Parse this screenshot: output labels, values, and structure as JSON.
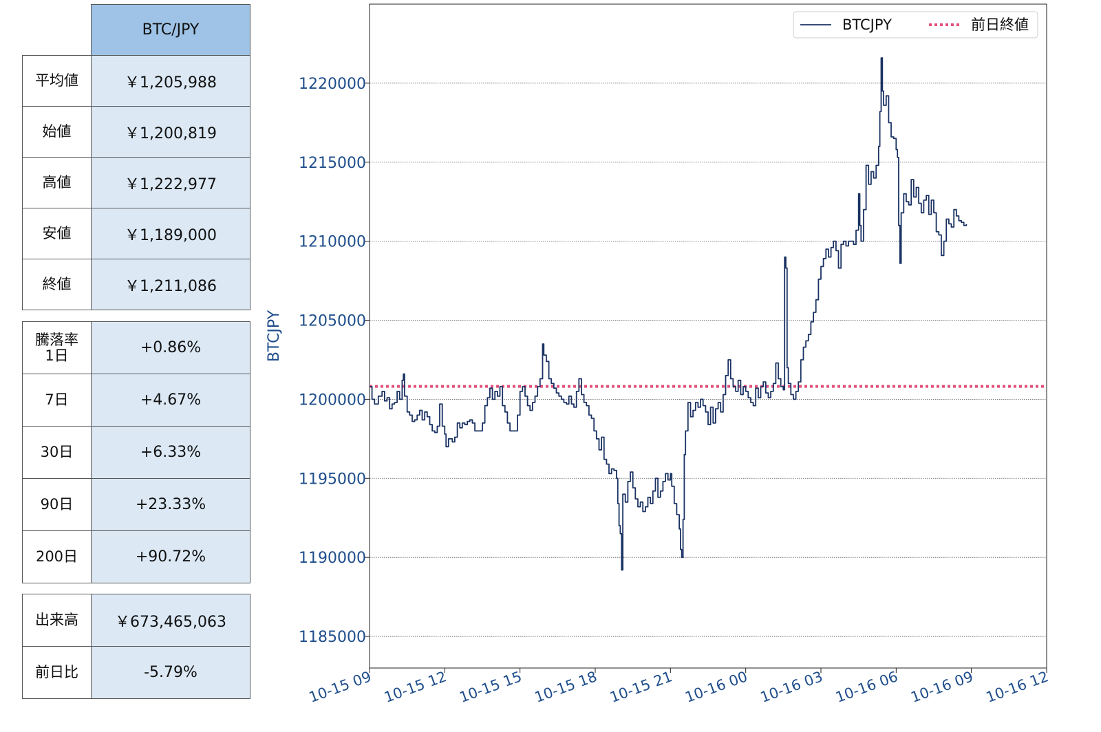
{
  "summary": {
    "header": "BTC/JPY",
    "rows": [
      {
        "label": "平均値",
        "value": "￥1,205,988"
      },
      {
        "label": "始値",
        "value": "￥1,200,819"
      },
      {
        "label": "高値",
        "value": "￥1,222,977"
      },
      {
        "label": "安値",
        "value": "￥1,189,000"
      },
      {
        "label": "終値",
        "value": "￥1,211,086"
      }
    ]
  },
  "changes": {
    "rows": [
      {
        "label": "騰落率\n1日",
        "value": "+0.86%"
      },
      {
        "label": "7日",
        "value": "+4.67%"
      },
      {
        "label": "30日",
        "value": "+6.33%"
      },
      {
        "label": "90日",
        "value": "+23.33%"
      },
      {
        "label": "200日",
        "value": "+90.72%"
      }
    ]
  },
  "volume": {
    "rows": [
      {
        "label": "出来高",
        "value": "￥673,465,063"
      },
      {
        "label": "前日比",
        "value": "-5.79%"
      }
    ]
  },
  "chart_data": {
    "type": "line",
    "ylabel": "BTCJPY",
    "xlabel": "",
    "ylim": [
      1183000,
      1225000
    ],
    "yticks": [
      1185000,
      1190000,
      1195000,
      1200000,
      1205000,
      1210000,
      1215000,
      1220000
    ],
    "xticks": [
      "10-15 09",
      "10-15 12",
      "10-15 15",
      "10-15 18",
      "10-15 21",
      "10-16 00",
      "10-16 03",
      "10-16 06",
      "10-16 09",
      "10-16 12"
    ],
    "x_unit": "hours since 10-15 09:00",
    "xlim_hours": [
      0,
      27
    ],
    "grid": "horizontal dotted",
    "legend": {
      "position": "top-right",
      "entries": [
        "BTCJPY",
        "前日終値"
      ]
    },
    "colors": {
      "line": "#1a3263",
      "ref": "#e0507a",
      "tick_text": "#1f4e8c"
    },
    "reference_line": {
      "name": "前日終値",
      "value": 1200819
    },
    "series": [
      {
        "name": "BTCJPY",
        "points": [
          [
            0.0,
            1200800
          ],
          [
            0.1,
            1200000
          ],
          [
            0.2,
            1199700
          ],
          [
            0.35,
            1200200
          ],
          [
            0.5,
            1200500
          ],
          [
            0.6,
            1199900
          ],
          [
            0.7,
            1200100
          ],
          [
            0.8,
            1199400
          ],
          [
            0.9,
            1199700
          ],
          [
            1.0,
            1199800
          ],
          [
            1.1,
            1200500
          ],
          [
            1.2,
            1200000
          ],
          [
            1.3,
            1201200
          ],
          [
            1.35,
            1201600
          ],
          [
            1.4,
            1200200
          ],
          [
            1.5,
            1199200
          ],
          [
            1.6,
            1199000
          ],
          [
            1.7,
            1198600
          ],
          [
            1.8,
            1198700
          ],
          [
            1.9,
            1199000
          ],
          [
            2.0,
            1199300
          ],
          [
            2.1,
            1198700
          ],
          [
            2.2,
            1199200
          ],
          [
            2.3,
            1198900
          ],
          [
            2.4,
            1198400
          ],
          [
            2.5,
            1198000
          ],
          [
            2.6,
            1197900
          ],
          [
            2.7,
            1198300
          ],
          [
            2.8,
            1199700
          ],
          [
            2.9,
            1198300
          ],
          [
            3.0,
            1197800
          ],
          [
            3.05,
            1197000
          ],
          [
            3.15,
            1197500
          ],
          [
            3.3,
            1197300
          ],
          [
            3.4,
            1197600
          ],
          [
            3.5,
            1198500
          ],
          [
            3.6,
            1198200
          ],
          [
            3.7,
            1198500
          ],
          [
            3.8,
            1198400
          ],
          [
            3.9,
            1198600
          ],
          [
            4.0,
            1198700
          ],
          [
            4.1,
            1198500
          ],
          [
            4.2,
            1198000
          ],
          [
            4.4,
            1198000
          ],
          [
            4.5,
            1198500
          ],
          [
            4.6,
            1199600
          ],
          [
            4.7,
            1200100
          ],
          [
            4.8,
            1200700
          ],
          [
            4.9,
            1200000
          ],
          [
            5.0,
            1200500
          ],
          [
            5.1,
            1200200
          ],
          [
            5.2,
            1200800
          ],
          [
            5.3,
            1199600
          ],
          [
            5.4,
            1199200
          ],
          [
            5.5,
            1198500
          ],
          [
            5.6,
            1198000
          ],
          [
            5.8,
            1198000
          ],
          [
            5.9,
            1199000
          ],
          [
            6.0,
            1200500
          ],
          [
            6.1,
            1200800
          ],
          [
            6.2,
            1200200
          ],
          [
            6.3,
            1199600
          ],
          [
            6.4,
            1199300
          ],
          [
            6.5,
            1199800
          ],
          [
            6.6,
            1200200
          ],
          [
            6.7,
            1200800
          ],
          [
            6.8,
            1201300
          ],
          [
            6.9,
            1203500
          ],
          [
            6.95,
            1202800
          ],
          [
            7.05,
            1202400
          ],
          [
            7.15,
            1201300
          ],
          [
            7.25,
            1201000
          ],
          [
            7.35,
            1200700
          ],
          [
            7.45,
            1200400
          ],
          [
            7.55,
            1200200
          ],
          [
            7.65,
            1200000
          ],
          [
            7.75,
            1199800
          ],
          [
            7.85,
            1199700
          ],
          [
            7.95,
            1200200
          ],
          [
            8.05,
            1199700
          ],
          [
            8.15,
            1199500
          ],
          [
            8.25,
            1200500
          ],
          [
            8.35,
            1201300
          ],
          [
            8.45,
            1200300
          ],
          [
            8.55,
            1199800
          ],
          [
            8.65,
            1199600
          ],
          [
            8.75,
            1199000
          ],
          [
            8.85,
            1198800
          ],
          [
            8.95,
            1198000
          ],
          [
            9.05,
            1197500
          ],
          [
            9.15,
            1196800
          ],
          [
            9.25,
            1197600
          ],
          [
            9.35,
            1196200
          ],
          [
            9.45,
            1195900
          ],
          [
            9.55,
            1195300
          ],
          [
            9.65,
            1195600
          ],
          [
            9.75,
            1195500
          ],
          [
            9.85,
            1195000
          ],
          [
            9.9,
            1193400
          ],
          [
            9.95,
            1192000
          ],
          [
            10.0,
            1191500
          ],
          [
            10.05,
            1189200
          ],
          [
            10.1,
            1194000
          ],
          [
            10.2,
            1193500
          ],
          [
            10.3,
            1194800
          ],
          [
            10.4,
            1195400
          ],
          [
            10.5,
            1194400
          ],
          [
            10.6,
            1193700
          ],
          [
            10.7,
            1193200
          ],
          [
            10.8,
            1193500
          ],
          [
            10.9,
            1192900
          ],
          [
            11.0,
            1193200
          ],
          [
            11.1,
            1193800
          ],
          [
            11.2,
            1193400
          ],
          [
            11.3,
            1194200
          ],
          [
            11.4,
            1195000
          ],
          [
            11.5,
            1193800
          ],
          [
            11.6,
            1194200
          ],
          [
            11.7,
            1194800
          ],
          [
            11.8,
            1195300
          ],
          [
            11.9,
            1194900
          ],
          [
            12.0,
            1195300
          ],
          [
            12.05,
            1194500
          ],
          [
            12.15,
            1193400
          ],
          [
            12.25,
            1192700
          ],
          [
            12.35,
            1191800
          ],
          [
            12.4,
            1190500
          ],
          [
            12.45,
            1190000
          ],
          [
            12.5,
            1192400
          ],
          [
            12.55,
            1196500
          ],
          [
            12.6,
            1198000
          ],
          [
            12.7,
            1199800
          ],
          [
            12.8,
            1198900
          ],
          [
            12.9,
            1199300
          ],
          [
            13.0,
            1199800
          ],
          [
            13.1,
            1199500
          ],
          [
            13.2,
            1200000
          ],
          [
            13.3,
            1199600
          ],
          [
            13.4,
            1199200
          ],
          [
            13.5,
            1198400
          ],
          [
            13.6,
            1199500
          ],
          [
            13.7,
            1198500
          ],
          [
            13.8,
            1199400
          ],
          [
            13.9,
            1199800
          ],
          [
            14.0,
            1199200
          ],
          [
            14.1,
            1200300
          ],
          [
            14.2,
            1201500
          ],
          [
            14.3,
            1202500
          ],
          [
            14.4,
            1201300
          ],
          [
            14.5,
            1200800
          ],
          [
            14.6,
            1200500
          ],
          [
            14.7,
            1201200
          ],
          [
            14.8,
            1200300
          ],
          [
            14.9,
            1200800
          ],
          [
            15.0,
            1200500
          ],
          [
            15.1,
            1200100
          ],
          [
            15.2,
            1199800
          ],
          [
            15.3,
            1199600
          ],
          [
            15.4,
            1200700
          ],
          [
            15.5,
            1200100
          ],
          [
            15.6,
            1200800
          ],
          [
            15.7,
            1201100
          ],
          [
            15.8,
            1200400
          ],
          [
            15.9,
            1200100
          ],
          [
            16.0,
            1200500
          ],
          [
            16.1,
            1201000
          ],
          [
            16.2,
            1202300
          ],
          [
            16.3,
            1201300
          ],
          [
            16.4,
            1200800
          ],
          [
            16.5,
            1200600
          ],
          [
            16.55,
            1209000
          ],
          [
            16.6,
            1208300
          ],
          [
            16.65,
            1202000
          ],
          [
            16.7,
            1201000
          ],
          [
            16.8,
            1200300
          ],
          [
            16.9,
            1200000
          ],
          [
            17.0,
            1200500
          ],
          [
            17.1,
            1201100
          ],
          [
            17.2,
            1202500
          ],
          [
            17.3,
            1203300
          ],
          [
            17.4,
            1203700
          ],
          [
            17.5,
            1204100
          ],
          [
            17.6,
            1204900
          ],
          [
            17.7,
            1205500
          ],
          [
            17.8,
            1206300
          ],
          [
            17.9,
            1207600
          ],
          [
            18.0,
            1208400
          ],
          [
            18.1,
            1208900
          ],
          [
            18.2,
            1209500
          ],
          [
            18.3,
            1209000
          ],
          [
            18.4,
            1209600
          ],
          [
            18.5,
            1210000
          ],
          [
            18.6,
            1209400
          ],
          [
            18.7,
            1208300
          ],
          [
            18.8,
            1209800
          ],
          [
            18.9,
            1210000
          ],
          [
            19.0,
            1209700
          ],
          [
            19.1,
            1210000
          ],
          [
            19.2,
            1210000
          ],
          [
            19.3,
            1209800
          ],
          [
            19.4,
            1210700
          ],
          [
            19.5,
            1213000
          ],
          [
            19.55,
            1211000
          ],
          [
            19.6,
            1210000
          ],
          [
            19.7,
            1212000
          ],
          [
            19.8,
            1214800
          ],
          [
            19.9,
            1213600
          ],
          [
            20.0,
            1214400
          ],
          [
            20.1,
            1214000
          ],
          [
            20.2,
            1214800
          ],
          [
            20.3,
            1216000
          ],
          [
            20.35,
            1218200
          ],
          [
            20.4,
            1221600
          ],
          [
            20.45,
            1219500
          ],
          [
            20.5,
            1218600
          ],
          [
            20.6,
            1219200
          ],
          [
            20.7,
            1217500
          ],
          [
            20.8,
            1216600
          ],
          [
            20.9,
            1216500
          ],
          [
            21.0,
            1215800
          ],
          [
            21.05,
            1215300
          ],
          [
            21.1,
            1211000
          ],
          [
            21.15,
            1208600
          ],
          [
            21.2,
            1211800
          ],
          [
            21.3,
            1213000
          ],
          [
            21.4,
            1212500
          ],
          [
            21.5,
            1212300
          ],
          [
            21.6,
            1213900
          ],
          [
            21.7,
            1212800
          ],
          [
            21.8,
            1213400
          ],
          [
            21.9,
            1212400
          ],
          [
            22.0,
            1211800
          ],
          [
            22.1,
            1212600
          ],
          [
            22.2,
            1212900
          ],
          [
            22.3,
            1211700
          ],
          [
            22.4,
            1212600
          ],
          [
            22.5,
            1211800
          ],
          [
            22.6,
            1210600
          ],
          [
            22.7,
            1210400
          ],
          [
            22.8,
            1209100
          ],
          [
            22.9,
            1210000
          ],
          [
            23.0,
            1211400
          ],
          [
            23.1,
            1211100
          ],
          [
            23.2,
            1210900
          ],
          [
            23.3,
            1212000
          ],
          [
            23.4,
            1211600
          ],
          [
            23.5,
            1211300
          ],
          [
            23.6,
            1211200
          ],
          [
            23.7,
            1211000
          ],
          [
            23.8,
            1211086
          ]
        ]
      }
    ]
  }
}
